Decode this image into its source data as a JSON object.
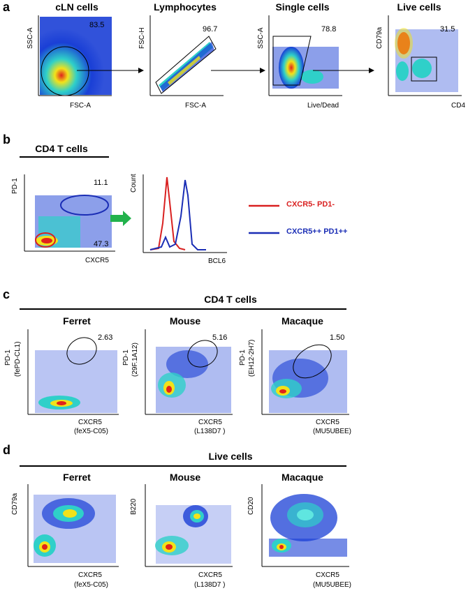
{
  "a": {
    "letter": "a",
    "plots": [
      {
        "title": "cLN cells",
        "y": "SSC-A",
        "x": "FSC-A",
        "pct": "83.5"
      },
      {
        "title": "Lymphocytes",
        "y": "FSC-H",
        "x": "FSC-A",
        "pct": "96.7"
      },
      {
        "title": "Single cells",
        "y": "SSC-A",
        "x": "Live/Dead",
        "pct": "78.8"
      },
      {
        "title": "Live cells",
        "y": "CD79a",
        "x": "CD4",
        "pct": "31.5"
      }
    ]
  },
  "b": {
    "letter": "b",
    "title": "CD4 T cells",
    "dot": {
      "y": "PD-1",
      "x": "CXCR5",
      "pct_high": "11.1",
      "pct_low": "47.3"
    },
    "hist": {
      "y": "Count",
      "x": "BCL6"
    },
    "legend": [
      {
        "label": "CXCR5-  PD1-",
        "color": "#d92020"
      },
      {
        "label": "CXCR5++  PD1++",
        "color": "#1a2db5"
      }
    ]
  },
  "c": {
    "letter": "c",
    "header": "CD4 T cells",
    "plots": [
      {
        "title": "Ferret",
        "y1": "PD-1",
        "y2": "(fePD-CL1)",
        "x1": "CXCR5",
        "x2": "(feX5-C05)",
        "pct": "2.63"
      },
      {
        "title": "Mouse",
        "y1": "PD-1",
        "y2": "(29F.1A12)",
        "x1": "CXCR5",
        "x2": "(L138D7 )",
        "pct": "5.16"
      },
      {
        "title": "Macaque",
        "y1": "PD-1",
        "y2": "(EH12-2H7)",
        "x1": "CXCR5",
        "x2": "(MU5UBEE)",
        "pct": "1.50"
      }
    ]
  },
  "d": {
    "letter": "d",
    "header": "Live cells",
    "plots": [
      {
        "title": "Ferret",
        "y": "CD79a",
        "x1": "CXCR5",
        "x2": "(feX5-C05)"
      },
      {
        "title": "Mouse",
        "y": "B220",
        "x1": "CXCR5",
        "x2": "(L138D7 )"
      },
      {
        "title": "Macaque",
        "y": "CD20",
        "x1": "CXCR5",
        "x2": "(MU5UBEE)"
      }
    ]
  },
  "colors": {
    "density_low": "#1a3fd6",
    "density_mid": "#2fd0c9",
    "density_hi": "#f2e21a",
    "density_peak": "#e0231b",
    "green_arrow": "#22b24c"
  }
}
